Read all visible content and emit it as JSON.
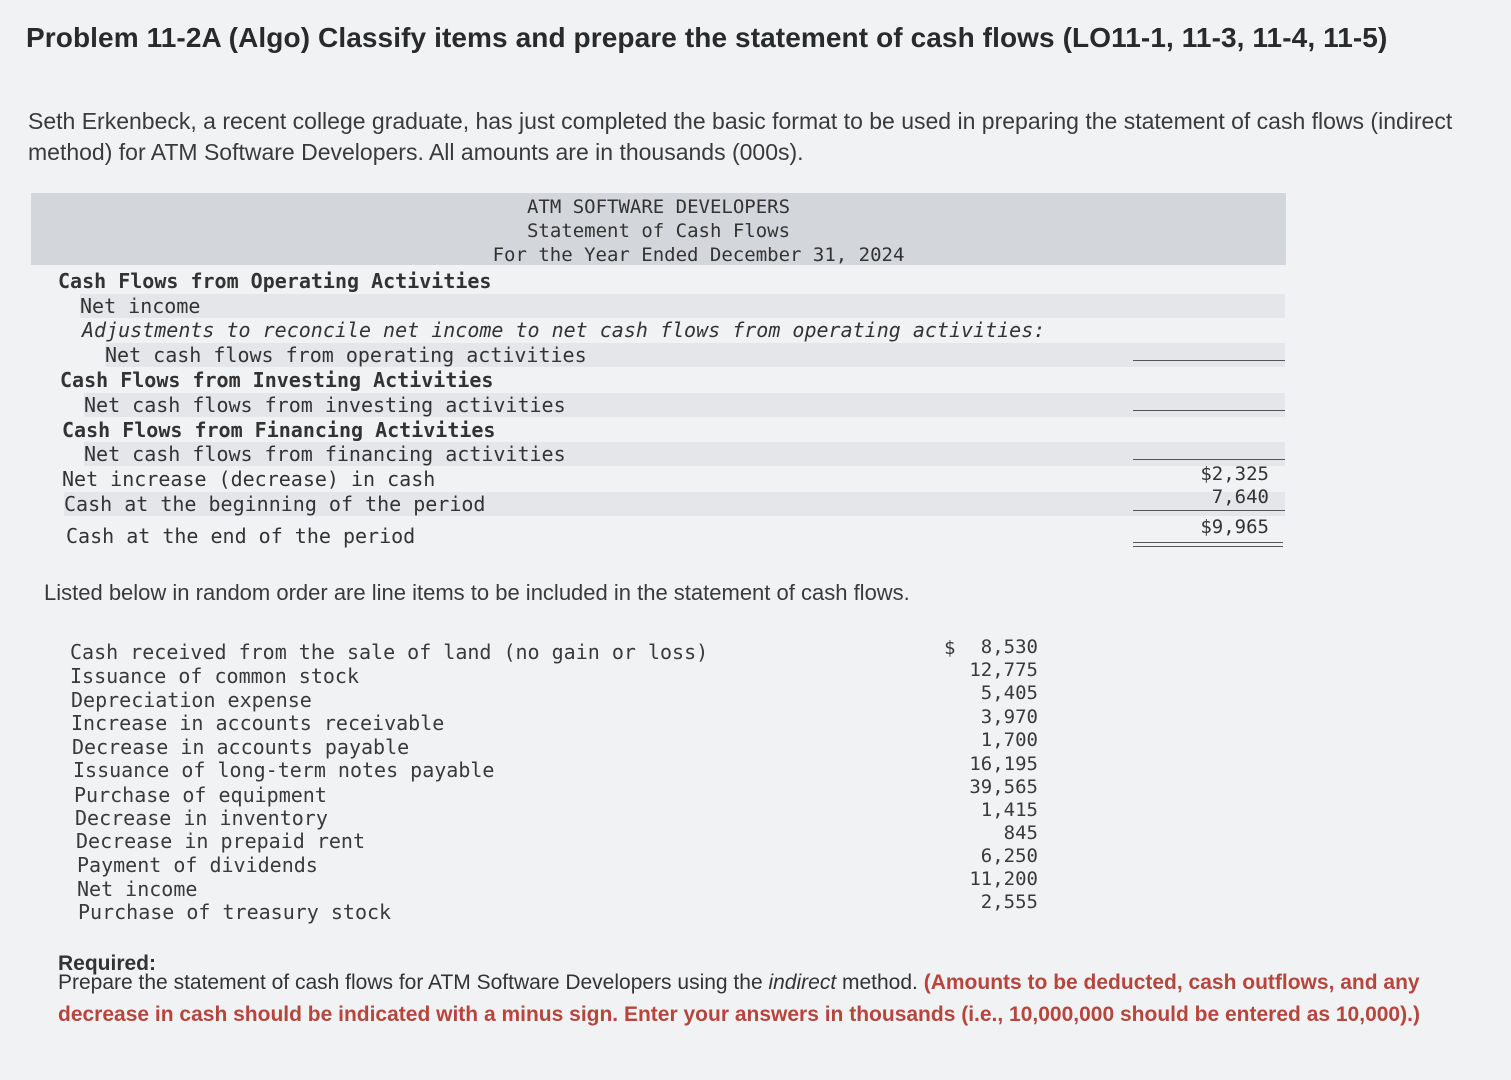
{
  "title": "Problem 11-2A (Algo) Classify items and prepare the statement of cash flows (LO11-1, 11-3, 11-4, 11-5)",
  "intro": "Seth Erkenbeck, a recent college graduate, has just completed the basic format to be used in preparing the statement of cash flows (indirect method) for ATM Software Developers. All amounts are in thousands (000s).",
  "statement": {
    "company": "ATM SOFTWARE DEVELOPERS",
    "name": "Statement of Cash Flows",
    "period": "For the Year Ended December 31, 2024",
    "operating_heading": "Cash Flows from Operating Activities",
    "net_income": "Net income",
    "adjustments": "Adjustments to reconcile net income to net cash flows from operating activities:",
    "net_operating": "Net cash flows from operating activities",
    "investing_heading": "Cash Flows from Investing Activities",
    "net_investing": "Net cash flows from investing activities",
    "financing_heading": "Cash Flows from Financing Activities",
    "net_financing": "Net cash flows from financing activities",
    "net_increase": "Net increase (decrease) in cash",
    "cash_beginning": "Cash at the beginning of the period",
    "cash_end": "Cash at the end of the period",
    "net_increase_value": "$2,325",
    "cash_beginning_value": "7,640",
    "cash_end_value": "$9,965"
  },
  "listed_intro": "Listed below in random order are line items to be included in the statement of cash flows.",
  "items": [
    {
      "label": "Cash received from the sale of land (no gain or loss)",
      "amount": "8,530"
    },
    {
      "label": "Issuance of common stock",
      "amount": "12,775"
    },
    {
      "label": "Depreciation expense",
      "amount": "5,405"
    },
    {
      "label": "Increase in accounts receivable",
      "amount": "3,970"
    },
    {
      "label": "Decrease in accounts payable",
      "amount": "1,700"
    },
    {
      "label": "Issuance of long-term notes payable",
      "amount": "16,195"
    },
    {
      "label": "Purchase of equipment",
      "amount": "39,565"
    },
    {
      "label": "Decrease in inventory",
      "amount": "1,415"
    },
    {
      "label": "Decrease in prepaid rent",
      "amount": "845"
    },
    {
      "label": "Payment of dividends",
      "amount": "6,250"
    },
    {
      "label": "Net income",
      "amount": "11,200"
    },
    {
      "label": "Purchase of treasury stock",
      "amount": "2,555"
    }
  ],
  "dollar_sign": "$",
  "required": {
    "label": "Required:",
    "text_a": "Prepare the statement of cash flows for ATM Software Developers using the ",
    "text_em": "indirect",
    "text_b": " method. ",
    "text_red": "(Amounts to be deducted, cash outflows, and any decrease in cash should be indicated with a minus sign. Enter your answers in thousands (i.e., 10,000,000 should be entered as 10,000).)"
  }
}
